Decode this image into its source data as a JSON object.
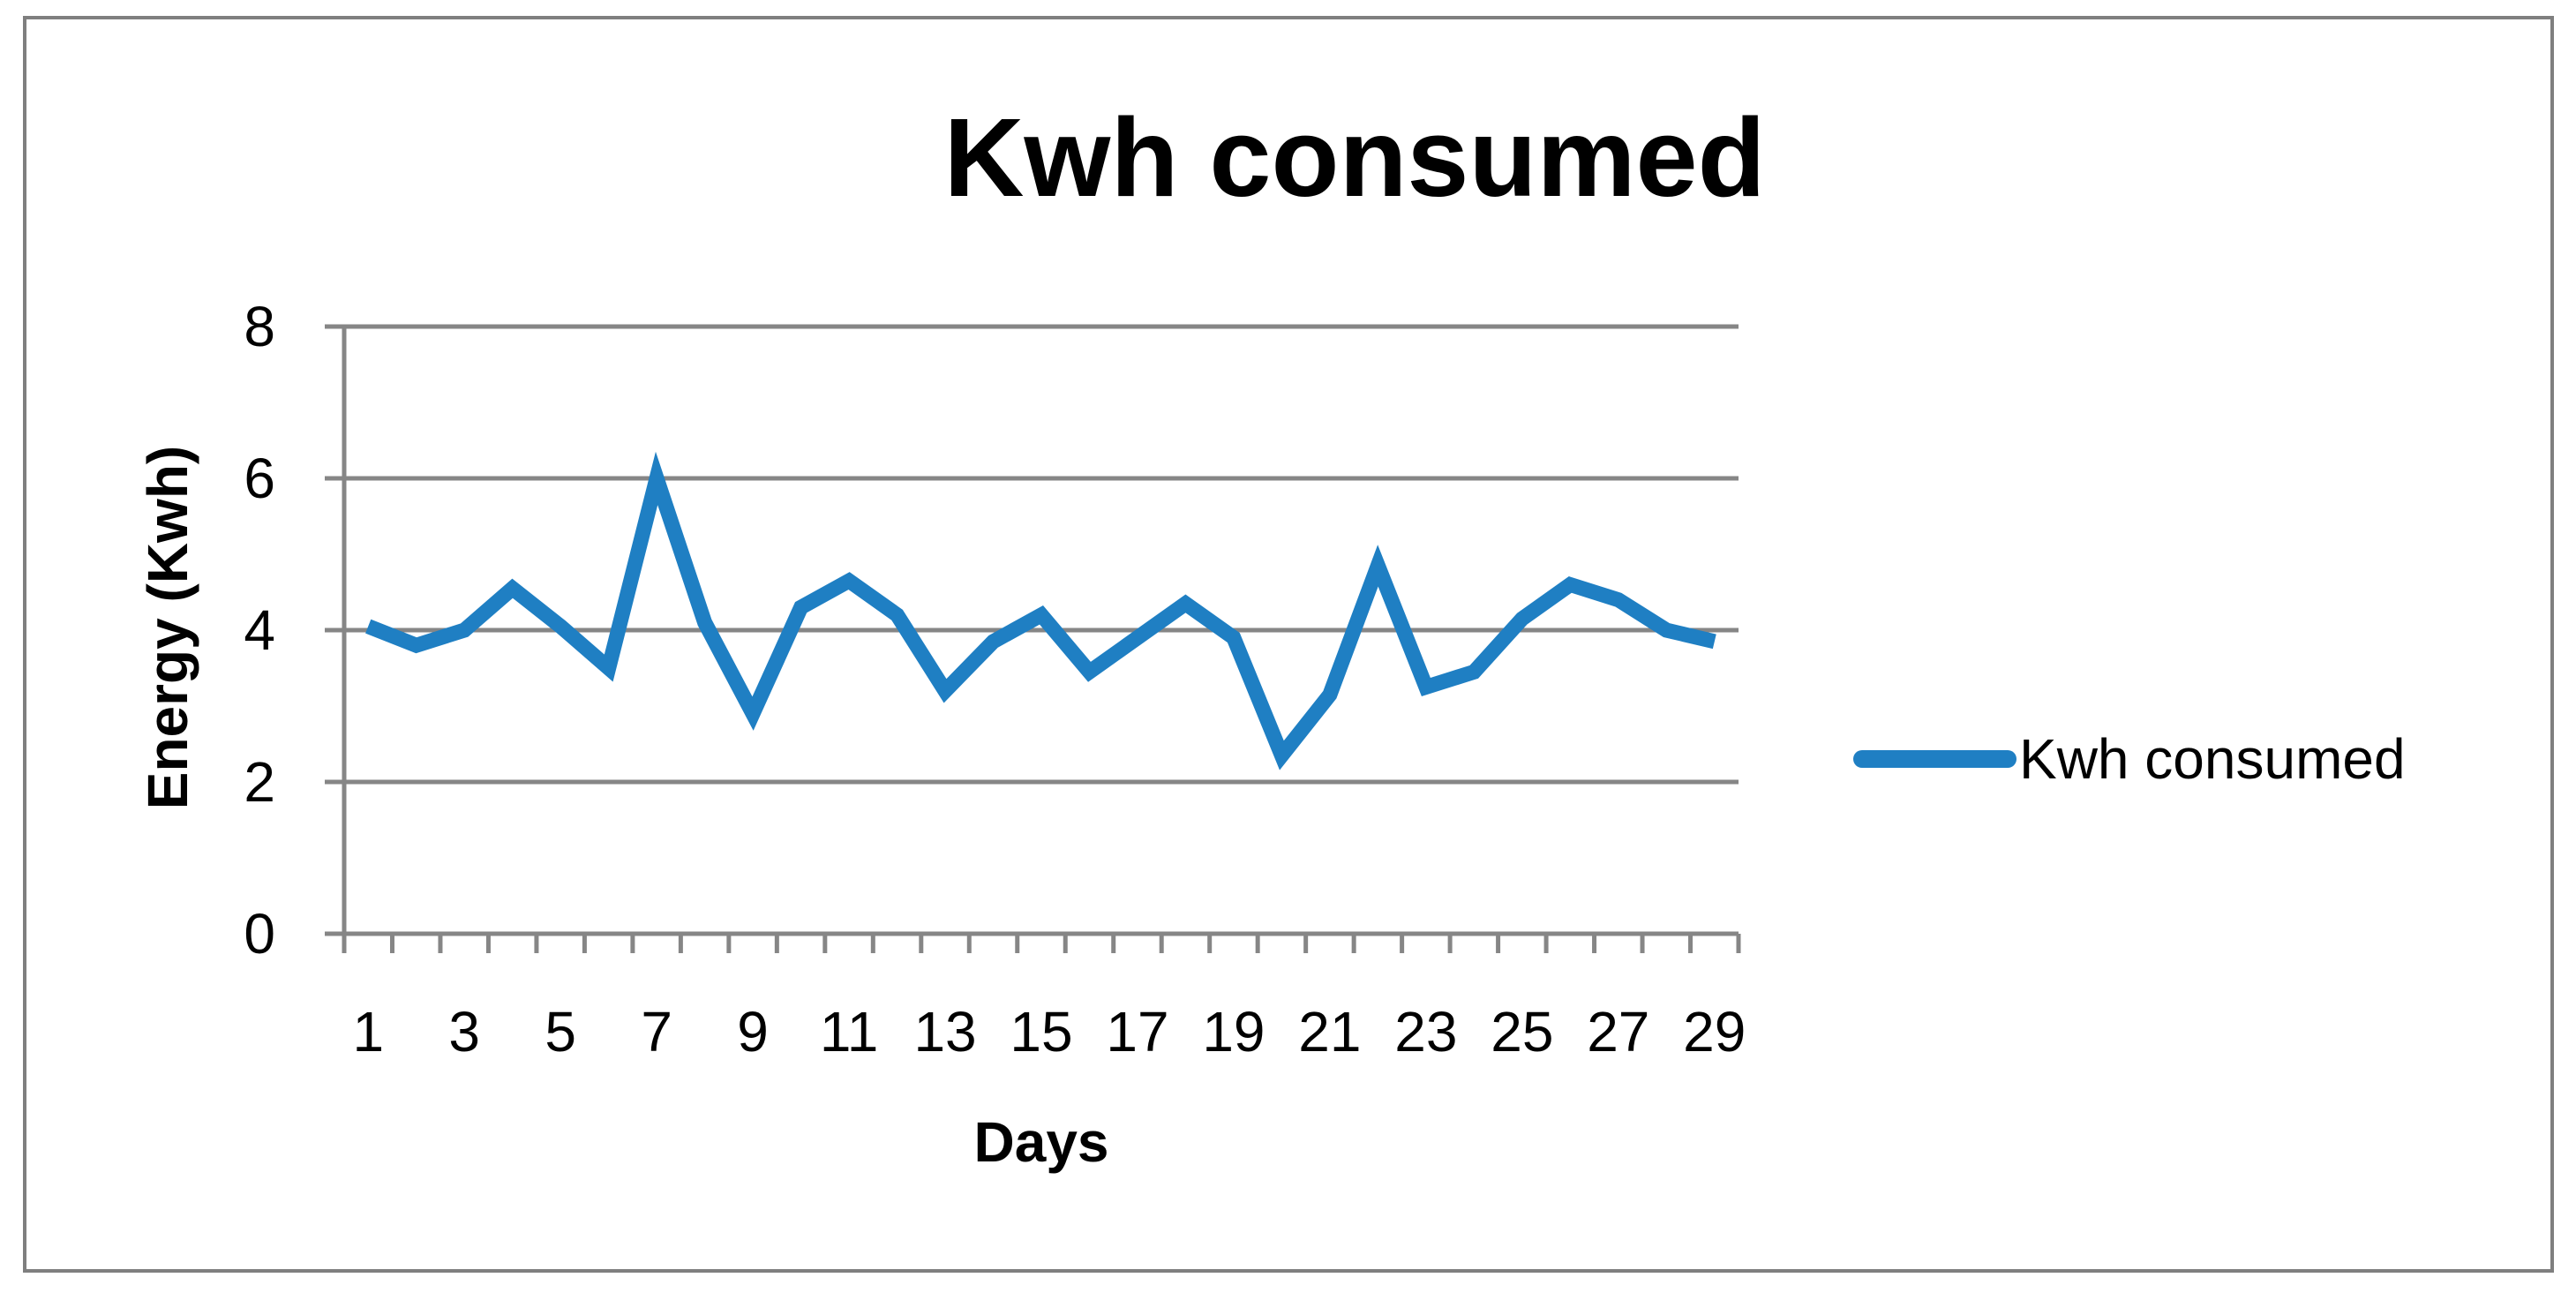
{
  "chart_data": {
    "type": "line",
    "title": "Kwh consumed",
    "xlabel": "Days",
    "ylabel": "Energy (Kwh)",
    "x": [
      1,
      2,
      3,
      4,
      5,
      6,
      7,
      8,
      9,
      10,
      11,
      12,
      13,
      14,
      15,
      16,
      17,
      18,
      19,
      20,
      21,
      22,
      23,
      24,
      25,
      26,
      27,
      28,
      29
    ],
    "x_tick_labels": [
      "1",
      "3",
      "5",
      "7",
      "9",
      "11",
      "13",
      "15",
      "17",
      "19",
      "21",
      "23",
      "25",
      "27",
      "29"
    ],
    "ylim": [
      0,
      8
    ],
    "y_ticks": [
      0,
      2,
      4,
      6,
      8
    ],
    "grid": "horizontal",
    "legend_position": "right",
    "series": [
      {
        "name": "Kwh consumed",
        "color": "#1f7fc3",
        "values": [
          4.05,
          3.8,
          4.0,
          4.55,
          4.05,
          3.5,
          6.0,
          4.1,
          2.9,
          4.3,
          4.65,
          4.2,
          3.2,
          3.85,
          4.2,
          3.45,
          3.9,
          4.35,
          3.9,
          2.35,
          3.15,
          4.85,
          3.25,
          3.45,
          4.15,
          4.6,
          4.4,
          4.0,
          3.85
        ]
      }
    ]
  }
}
